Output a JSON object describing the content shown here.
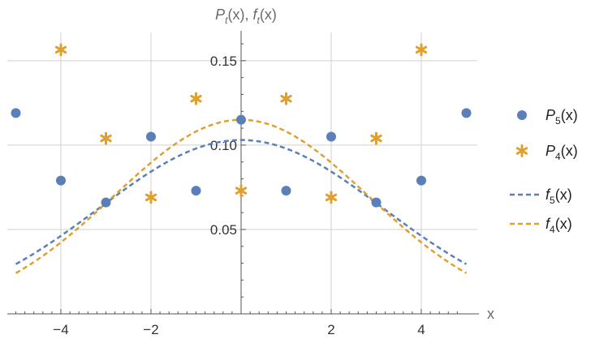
{
  "chart_data": {
    "type": "scatter",
    "title": "",
    "xlabel": "x",
    "ylabel": "P_t(x), f_t(x)",
    "ylabel_parts": {
      "P": "P",
      "t": "t",
      "f": "f",
      "x_open": "(x), ",
      "x_close": "(x)"
    },
    "xlim": [
      -5.2,
      5.2
    ],
    "ylim": [
      0.0,
      0.165
    ],
    "xticks": [
      -4,
      -2,
      2,
      4
    ],
    "xtick_labels": [
      "−4",
      "−2",
      "2",
      "4"
    ],
    "yticks": [
      0.05,
      0.1,
      0.15
    ],
    "ytick_labels": [
      "0.05",
      "0.10",
      "0.15"
    ],
    "grid": true,
    "legend_position": "right",
    "colors": {
      "blue": "#5b7fb8",
      "orange": "#e0a030",
      "grid": "#d0d0d0",
      "axis": "#555555"
    },
    "series": [
      {
        "name": "P5(x)",
        "legend": {
          "letter": "P",
          "sub": "5",
          "arg": "(x)"
        },
        "marker": "circle",
        "color": "#5b7fb8",
        "x": [
          -5,
          -4,
          -3,
          -2,
          -1,
          0,
          1,
          2,
          3,
          4,
          5
        ],
        "y": [
          0.119,
          0.079,
          0.066,
          0.105,
          0.073,
          0.115,
          0.073,
          0.105,
          0.066,
          0.079,
          0.119
        ]
      },
      {
        "name": "P4(x)",
        "legend": {
          "letter": "P",
          "sub": "4",
          "arg": "(x)"
        },
        "marker": "asterisk",
        "color": "#e0a030",
        "x": [
          -4,
          -3,
          -2,
          -1,
          0,
          1,
          2,
          3,
          4
        ],
        "y": [
          0.1565,
          0.104,
          0.069,
          0.1275,
          0.073,
          0.1275,
          0.069,
          0.104,
          0.1565
        ]
      },
      {
        "name": "f5(x)",
        "legend": {
          "letter": "f",
          "sub": "5",
          "arg": "(x)"
        },
        "marker": "dashed-line",
        "color": "#5b7fb8",
        "amplitude": 0.103,
        "sigma": 3.16,
        "x_range": [
          -5,
          5
        ]
      },
      {
        "name": "f4(x)",
        "legend": {
          "letter": "f",
          "sub": "4",
          "arg": "(x)"
        },
        "marker": "dashed-line",
        "color": "#e0a030",
        "amplitude": 0.115,
        "sigma": 2.83,
        "x_range": [
          -5,
          5
        ]
      }
    ]
  }
}
